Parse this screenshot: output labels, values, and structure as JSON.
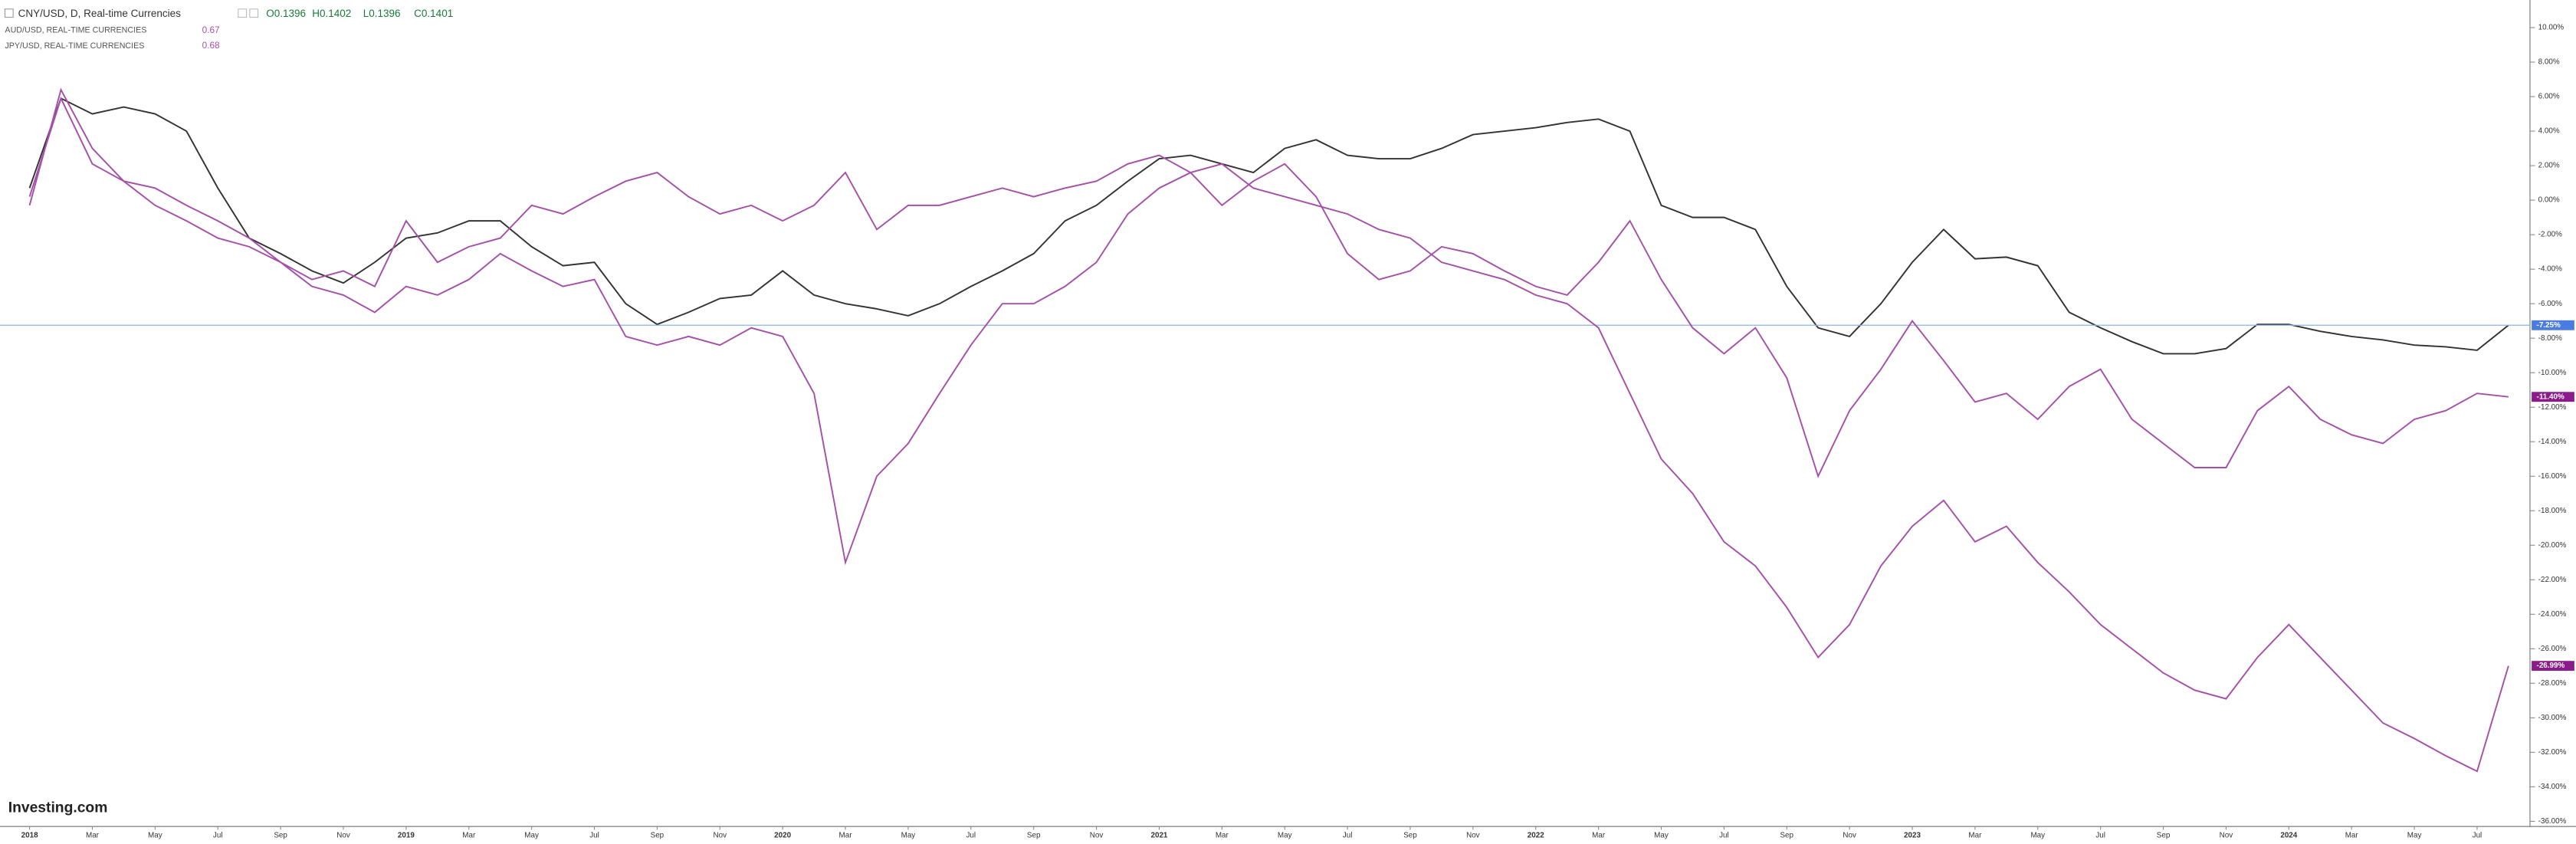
{
  "header": {
    "main": {
      "symbol": "CNY/USD, D, Real-time Currencies",
      "open": "O0.1396",
      "high": "H0.1402",
      "low": "L0.1396",
      "close": "C0.1401"
    },
    "compare": [
      {
        "symbol": "AUD/USD, REAL-TIME CURRENCIES",
        "value": 0.67
      },
      {
        "symbol": "JPY/USD, REAL-TIME CURRENCIES",
        "value": 0.68
      }
    ]
  },
  "logo": "Investing.com",
  "chart_data": {
    "type": "line",
    "categories": [
      "2018",
      null,
      "Mar",
      null,
      "May",
      null,
      "Jul",
      null,
      "Sep",
      null,
      "Nov",
      null,
      "2019",
      null,
      "Mar",
      null,
      "May",
      null,
      "Jul",
      null,
      "Sep",
      null,
      "Nov",
      null,
      "2020",
      null,
      "Mar",
      null,
      "May",
      null,
      "Jul",
      null,
      "Sep",
      null,
      "Nov",
      null,
      "2021",
      null,
      "Mar",
      null,
      "May",
      null,
      "Jul",
      null,
      "Sep",
      null,
      "Nov",
      null,
      "2022",
      null,
      "Mar",
      null,
      "May",
      null,
      "Jul",
      null,
      "Sep",
      null,
      "Nov",
      null,
      "2023",
      null,
      "Mar",
      null,
      "May",
      null,
      "Jul",
      null,
      "Sep",
      null,
      "Nov",
      null,
      "2024",
      null,
      "Mar",
      null,
      "May",
      null,
      "Jul",
      null
    ],
    "series": [
      {
        "name": "CNY/USD",
        "color": "#333333",
        "last_value_label": "-7.25%",
        "label_color": "#4a7be0",
        "values": [
          0.7,
          5.9,
          5.0,
          5.4,
          5.0,
          4.0,
          0.7,
          -2.2,
          -3.1,
          -4.1,
          -4.8,
          -3.6,
          -2.2,
          -1.9,
          -1.2,
          -1.2,
          -2.7,
          -3.8,
          -3.6,
          -6.0,
          -7.2,
          -6.5,
          -5.7,
          -5.5,
          -4.1,
          -5.5,
          -6.0,
          -6.3,
          -6.7,
          -6.0,
          -5.0,
          -4.1,
          -3.1,
          -1.2,
          -0.3,
          1.1,
          2.4,
          2.6,
          2.1,
          1.6,
          3.0,
          3.5,
          2.6,
          2.4,
          2.4,
          3.0,
          3.8,
          4.0,
          4.2,
          4.5,
          4.7,
          4.0,
          -0.3,
          -1.0,
          -1.0,
          -1.7,
          -5.0,
          -7.4,
          -7.9,
          -6.0,
          -3.6,
          -1.7,
          -3.4,
          -3.3,
          -3.8,
          -6.5,
          -7.4,
          -8.2,
          -8.9,
          -8.9,
          -8.6,
          -7.2,
          -7.2,
          -7.6,
          -7.9,
          -8.1,
          -8.4,
          -8.5,
          -8.7,
          -7.25
        ]
      },
      {
        "name": "AUD/USD",
        "color": "#a450a8",
        "last_value_label": "-11.40%",
        "label_color": "#8b1a8b",
        "values": [
          0.2,
          5.9,
          2.1,
          1.1,
          -0.3,
          -1.2,
          -2.2,
          -2.7,
          -3.6,
          -5.0,
          -5.5,
          -6.5,
          -5.0,
          -5.5,
          -4.6,
          -3.1,
          -4.1,
          -5.0,
          -4.6,
          -7.9,
          -8.4,
          -7.9,
          -8.4,
          -7.4,
          -7.9,
          -11.2,
          -21.0,
          -16.0,
          -14.1,
          -11.2,
          -8.4,
          -6.0,
          -6.0,
          -5.0,
          -3.6,
          -0.8,
          0.7,
          1.6,
          -0.3,
          1.1,
          2.1,
          0.2,
          -3.1,
          -4.6,
          -4.1,
          -2.7,
          -3.1,
          -4.1,
          -5.0,
          -5.5,
          -3.6,
          -1.2,
          -4.6,
          -7.4,
          -8.9,
          -7.4,
          -10.3,
          -16.0,
          -12.2,
          -9.8,
          -7.0,
          -9.3,
          -11.7,
          -11.2,
          -12.7,
          -10.8,
          -9.8,
          -12.7,
          -14.1,
          -15.5,
          -15.5,
          -12.2,
          -10.8,
          -12.7,
          -13.6,
          -14.1,
          -12.7,
          -12.2,
          -11.2,
          -11.4
        ]
      },
      {
        "name": "JPY/USD",
        "color": "#a450a8",
        "last_value_label": "-26.99%",
        "label_color": "#8b1a8b",
        "values": [
          -0.3,
          6.4,
          3.0,
          1.1,
          0.7,
          -0.3,
          -1.2,
          -2.2,
          -3.6,
          -4.6,
          -4.1,
          -5.0,
          -1.2,
          -3.6,
          -2.7,
          -2.2,
          -0.3,
          -0.8,
          0.2,
          1.1,
          1.6,
          0.2,
          -0.8,
          -0.3,
          -1.2,
          -0.3,
          1.6,
          -1.7,
          -0.3,
          -0.3,
          0.2,
          0.7,
          0.2,
          0.7,
          1.1,
          2.1,
          2.6,
          1.6,
          2.1,
          0.7,
          0.2,
          -0.3,
          -0.8,
          -1.7,
          -2.2,
          -3.6,
          -4.1,
          -4.6,
          -5.5,
          -6.0,
          -7.4,
          -11.2,
          -15.0,
          -17.0,
          -19.8,
          -21.2,
          -23.6,
          -26.5,
          -24.6,
          -21.2,
          -18.9,
          -17.4,
          -19.8,
          -18.9,
          -21.0,
          -22.7,
          -24.6,
          -26.0,
          -27.4,
          -28.4,
          -28.9,
          -26.5,
          -24.6,
          -26.5,
          -28.4,
          -30.3,
          -31.2,
          -32.2,
          -33.1,
          -26.99
        ]
      }
    ],
    "ylim": [
      -36.3,
      11.6
    ],
    "yticks": [
      {
        "value": 10,
        "label": "10.00%"
      },
      {
        "value": 8,
        "label": "8.00%"
      },
      {
        "value": 6,
        "label": "6.00%"
      },
      {
        "value": 4,
        "label": "4.00%"
      },
      {
        "value": 2,
        "label": "2.00%"
      },
      {
        "value": 0,
        "label": "0.00%"
      },
      {
        "value": -2,
        "label": "-2.00%"
      },
      {
        "value": -4,
        "label": "-4.00%"
      },
      {
        "value": -6,
        "label": "-6.00%"
      },
      {
        "value": -8,
        "label": "-8.00%"
      },
      {
        "value": -10,
        "label": "-10.00%"
      },
      {
        "value": -12,
        "label": "-12.00%"
      },
      {
        "value": -14,
        "label": "-14.00%"
      },
      {
        "value": -16,
        "label": "-16.00%"
      },
      {
        "value": -18,
        "label": "-18.00%"
      },
      {
        "value": -20,
        "label": "-20.00%"
      },
      {
        "value": -22,
        "label": "-22.00%"
      },
      {
        "value": -24,
        "label": "-24.00%"
      },
      {
        "value": -26,
        "label": "-26.00%"
      },
      {
        "value": -28,
        "label": "-28.00%"
      },
      {
        "value": -30,
        "label": "-30.00%"
      },
      {
        "value": -32,
        "label": "-32.00%"
      },
      {
        "value": -34,
        "label": "-34.00%"
      },
      {
        "value": -36,
        "label": "-36.00%"
      }
    ],
    "grid": false
  }
}
